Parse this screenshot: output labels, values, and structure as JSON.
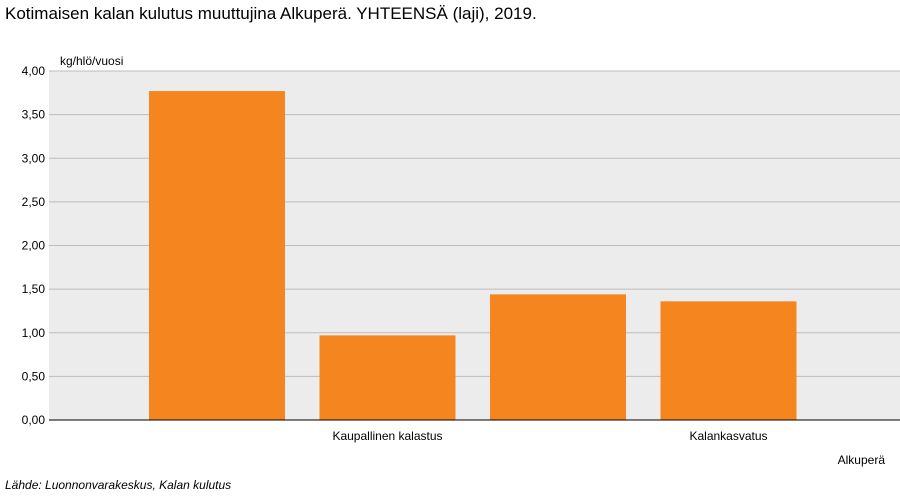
{
  "chart_data": {
    "type": "bar",
    "title": "Kotimaisen kalan kulutus muuttujina Alkuperä. YHTEENSÄ (laji), 2019.",
    "ylabel": "kg/hlö/vuosi",
    "xlabel": "Alkuperä",
    "categories": [
      "",
      "Kaupallinen kalastus",
      "",
      "Kalankasvatus"
    ],
    "values": [
      3.77,
      0.97,
      1.44,
      1.36
    ],
    "ylim": [
      0,
      4
    ],
    "yticks": [
      "0,00",
      "0,50",
      "1,00",
      "1,50",
      "2,00",
      "2,50",
      "3,00",
      "3,50",
      "4,00"
    ],
    "bar_color": "#f5861f",
    "plot_background": "#ececec",
    "gridline_color": "#bdbdbd",
    "grid": true
  },
  "source": "Lähde: Luonnonvarakeskus, Kalan kulutus"
}
